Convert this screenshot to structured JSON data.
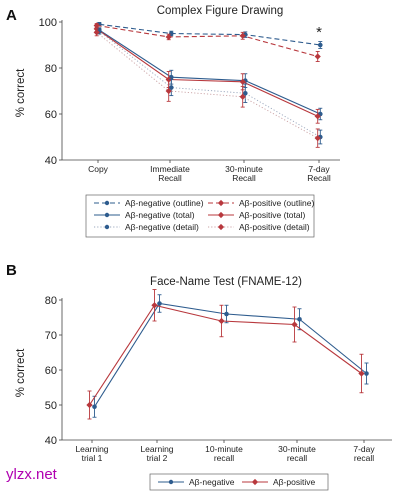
{
  "watermark": "ylzx.net",
  "colors": {
    "negative": "#2e5c8e",
    "positive": "#b8383d",
    "neutral_light": "#c8c8c8"
  },
  "chart_data": [
    {
      "panel": "A",
      "type": "line",
      "title": "Complex Figure Drawing",
      "ylabel": "% correct",
      "ylim": [
        40,
        100
      ],
      "yticks": [
        40,
        60,
        80,
        100
      ],
      "categories": [
        [
          "Copy"
        ],
        [
          "Immediate",
          "Recall"
        ],
        [
          "30-minute",
          "Recall"
        ],
        [
          "7-day",
          "Recall"
        ]
      ],
      "annotation": {
        "text": "*",
        "category_index": 3,
        "y": 96
      },
      "series": [
        {
          "name": "Aβ-negative (outline)",
          "group": "negative",
          "style": "dashed",
          "values": [
            99,
            95,
            94.5,
            90
          ],
          "err": [
            0.8,
            1.0,
            1.2,
            1.5
          ]
        },
        {
          "name": "Aβ-positive (outline)",
          "group": "positive",
          "style": "dashed",
          "values": [
            98.5,
            93.5,
            94,
            85
          ],
          "err": [
            0.8,
            1.2,
            1.5,
            2.2
          ]
        },
        {
          "name": "Aβ-negative (total)",
          "group": "negative",
          "style": "solid",
          "values": [
            96.5,
            76,
            74.5,
            60
          ],
          "err": [
            1.0,
            3.0,
            3.0,
            2.5
          ]
        },
        {
          "name": "Aβ-positive (total)",
          "group": "positive",
          "style": "solid",
          "values": [
            97,
            75,
            74,
            59
          ],
          "err": [
            1.2,
            3.5,
            3.5,
            3.0
          ]
        },
        {
          "name": "Aβ-negative (detail)",
          "group": "negative",
          "style": "dotted",
          "values": [
            96,
            71.5,
            69,
            50
          ],
          "err": [
            1.2,
            3.5,
            4.0,
            3.0
          ]
        },
        {
          "name": "Aβ-positive (detail)",
          "group": "positive",
          "style": "dotted",
          "values": [
            95.5,
            70,
            67.5,
            49.5
          ],
          "err": [
            1.5,
            4.5,
            4.5,
            4.0
          ]
        }
      ],
      "legend_placement": "bottom"
    },
    {
      "panel": "B",
      "type": "line",
      "title": "Face-Name Test (FNAME-12)",
      "ylabel": "% correct",
      "ylim": [
        40,
        80
      ],
      "yticks": [
        40,
        50,
        60,
        70,
        80
      ],
      "categories": [
        [
          "Learning",
          "trial 1"
        ],
        [
          "Learning",
          "trial 2"
        ],
        [
          "10-minute",
          "recall"
        ],
        [
          "30-minute",
          "recall"
        ],
        [
          "7-day",
          "recall"
        ]
      ],
      "series": [
        {
          "name": "Aβ-negative",
          "group": "negative",
          "style": "solid",
          "values": [
            49.5,
            79,
            76,
            74.5,
            59
          ],
          "err": [
            3.0,
            2.5,
            2.5,
            3.0,
            3.0
          ]
        },
        {
          "name": "Aβ-positive",
          "group": "positive",
          "style": "solid",
          "values": [
            50,
            78.5,
            74,
            73,
            59
          ],
          "err": [
            4.0,
            4.5,
            4.5,
            5.0,
            5.5
          ]
        }
      ],
      "legend_placement": "bottom"
    }
  ]
}
